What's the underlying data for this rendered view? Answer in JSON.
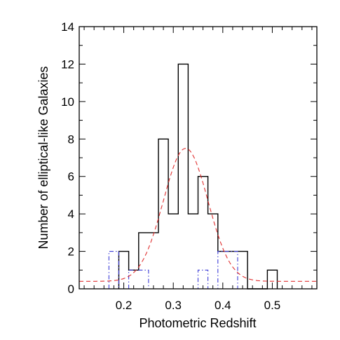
{
  "chart_data": {
    "type": "bar",
    "title": "",
    "xlabel": "Photometric Redshift",
    "ylabel": "Number of elliptical-like Galaxies",
    "xlim": [
      0.11,
      0.59
    ],
    "ylim": [
      0,
      14
    ],
    "xticks": [
      0.2,
      0.3,
      0.4,
      0.5
    ],
    "xtick_labels": [
      "0.2",
      "0.3",
      "0.4",
      "0.5"
    ],
    "yticks": [
      0,
      2,
      4,
      6,
      8,
      10,
      12,
      14
    ],
    "ytick_labels": [
      "0",
      "2",
      "4",
      "6",
      "8",
      "10",
      "12",
      "14"
    ],
    "grid": false,
    "legend": "none",
    "bin_width": 0.02,
    "series": [
      {
        "style": "histogram-solid",
        "color": "#000000",
        "bin_left_edges": [
          0.19,
          0.21,
          0.23,
          0.25,
          0.27,
          0.29,
          0.31,
          0.33,
          0.35,
          0.37,
          0.39,
          0.41,
          0.43,
          0.45,
          0.47,
          0.49
        ],
        "values": [
          2,
          1,
          3,
          3,
          8,
          4,
          12,
          4,
          6,
          4,
          2,
          2,
          2,
          0,
          0,
          1
        ]
      },
      {
        "style": "histogram-dash-dot",
        "color": "#3b3bd6",
        "bin_left_edges": [
          0.17,
          0.19,
          0.21,
          0.23,
          0.25,
          0.27,
          0.29,
          0.31,
          0.33,
          0.35,
          0.37,
          0.39,
          0.41,
          0.43,
          0.45,
          0.47,
          0.49
        ],
        "values": [
          2,
          0,
          1,
          1,
          0,
          0,
          0,
          0,
          0,
          1,
          0,
          2,
          2,
          0,
          0,
          0,
          0
        ]
      },
      {
        "style": "gaussian-fit-dashed",
        "color": "#e03030",
        "mean": 0.325,
        "sigma": 0.045,
        "amplitude": 7.1,
        "offset": 0.4
      }
    ]
  }
}
